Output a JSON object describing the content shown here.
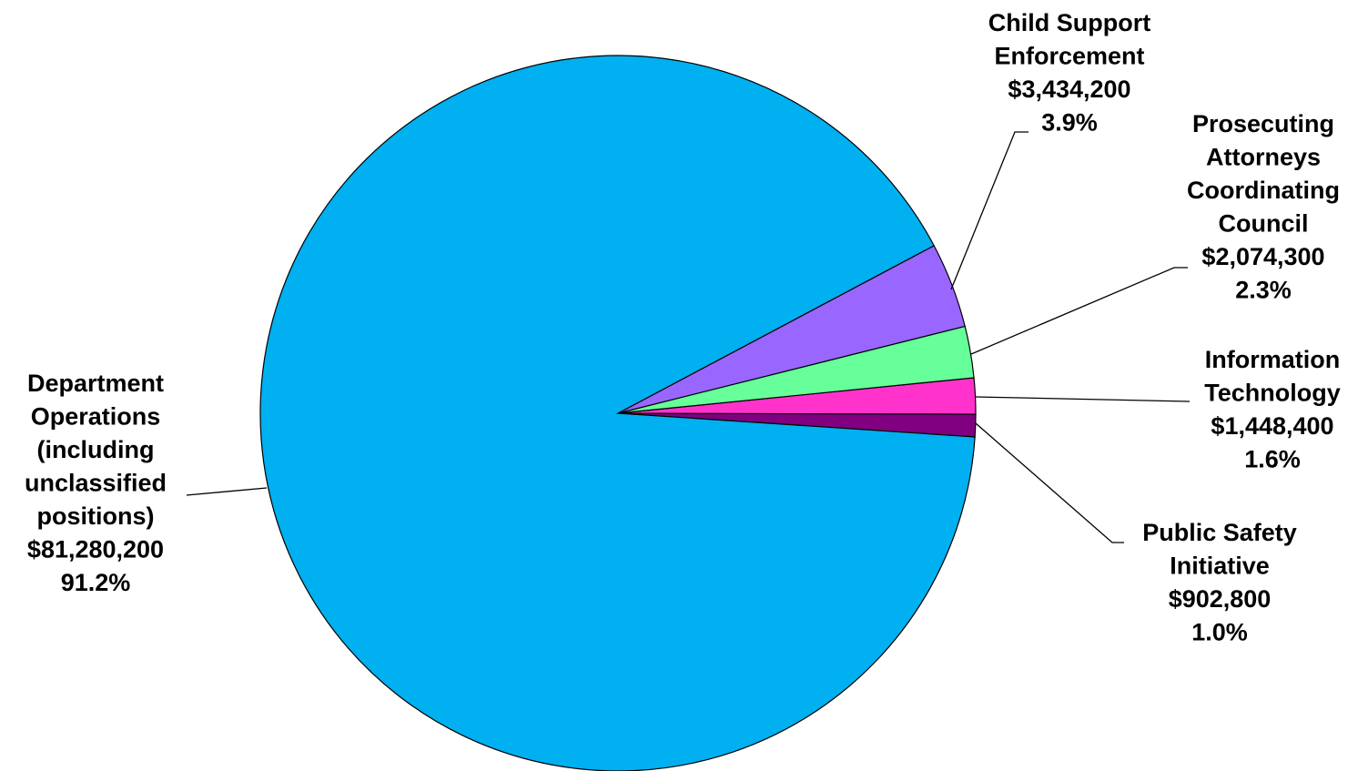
{
  "chart_data": {
    "type": "pie",
    "title": "",
    "slices": [
      {
        "name": [
          "Department",
          "Operations",
          "(including",
          "unclassified",
          "positions)"
        ],
        "value": 81280200,
        "value_label": "$81,280,200",
        "percent": 91.2,
        "percent_label": "91.2%",
        "color": "#00B0F0"
      },
      {
        "name": [
          "Child Support",
          "Enforcement"
        ],
        "value": 3434200,
        "value_label": "$3,434,200",
        "percent": 3.9,
        "percent_label": "3.9%",
        "color": "#9966FF"
      },
      {
        "name": [
          "Prosecuting",
          "Attorneys",
          "Coordinating",
          "Council"
        ],
        "value": 2074300,
        "value_label": "$2,074,300",
        "percent": 2.3,
        "percent_label": "2.3%",
        "color": "#66FF99"
      },
      {
        "name": [
          "Information",
          "Technology"
        ],
        "value": 1448400,
        "value_label": "$1,448,400",
        "percent": 1.6,
        "percent_label": "1.6%",
        "color": "#FF33CC"
      },
      {
        "name": [
          "Public Safety",
          "Initiative"
        ],
        "value": 902800,
        "value_label": "$902,800",
        "percent": 1.0,
        "percent_label": "1.0%",
        "color": "#800080"
      }
    ]
  }
}
